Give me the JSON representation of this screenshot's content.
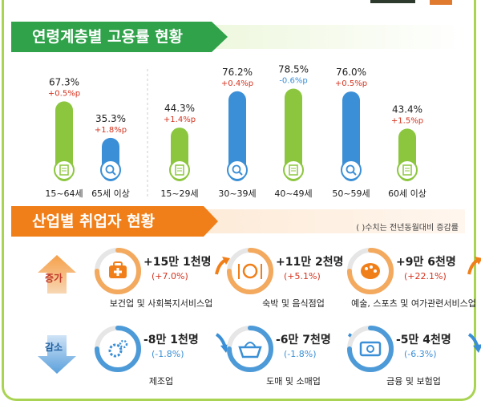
{
  "colors": {
    "green": "#8cc63f",
    "blue": "#3b8fd6",
    "red": "#d4331f",
    "orange": "#f07f1a",
    "banner_green": "#2fa24a",
    "banner_orange": "#f07f1a"
  },
  "section1": {
    "title": "연령계층별 고용률 현황"
  },
  "chart_data": {
    "type": "bar",
    "ylabel": "",
    "ylim": [
      0,
      100
    ],
    "categories": [
      "15~64세",
      "65세 이상",
      "15~29세",
      "30~39세",
      "40~49세",
      "50~59세",
      "60세 이상"
    ],
    "values": [
      67.3,
      35.3,
      44.3,
      76.2,
      78.5,
      76.0,
      43.4
    ],
    "value_labels": [
      "67.3%",
      "35.3%",
      "44.3%",
      "76.2%",
      "78.5%",
      "76.0%",
      "43.4%"
    ],
    "changes": [
      "+0.5%p",
      "+1.8%p",
      "+1.4%p",
      "+0.4%p",
      "-0.6%p",
      "+0.5%p",
      "+1.5%p"
    ],
    "bar_colors": [
      "green",
      "blue",
      "green",
      "blue",
      "green",
      "blue",
      "green"
    ],
    "icons": [
      "document-icon",
      "search-icon",
      "document-icon",
      "search-icon",
      "document-icon",
      "search-icon",
      "document-icon"
    ]
  },
  "section2": {
    "title": "산업별 취업자 현황",
    "note": "( )수치는 전년동월대비 증감률",
    "increase_label": "증가",
    "decrease_label": "감소",
    "increase": [
      {
        "icon": "first-aid-kit-icon",
        "value": "+15만 1천명",
        "change": "(+7.0%)",
        "label": "보건업 및 사회복지서비스업"
      },
      {
        "icon": "dining-icon",
        "value": "+11만 2천명",
        "change": "(+5.1%)",
        "label": "숙박 및 음식점업"
      },
      {
        "icon": "palette-icon",
        "value": "+9만 6천명",
        "change": "(+22.1%)",
        "label": "예술, 스포츠 및 여가관련서비스업"
      }
    ],
    "decrease": [
      {
        "icon": "gears-icon",
        "value": "-8만 1천명",
        "change": "(-1.8%)",
        "label": "제조업"
      },
      {
        "icon": "shopping-basket-icon",
        "value": "-6만 7천명",
        "change": "(-1.8%)",
        "label": "도매 및 소매업"
      },
      {
        "icon": "money-icon",
        "value": "-5만 4천명",
        "change": "(-6.3%)",
        "label": "금융 및 보험업"
      }
    ]
  }
}
